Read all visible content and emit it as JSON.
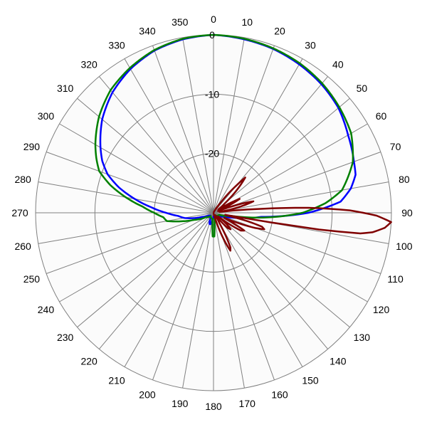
{
  "chart_data": {
    "type": "polar-line",
    "angle_unit": "degrees",
    "angle_zero": "top",
    "angle_direction": "clockwise",
    "angle_ticks": [
      "0",
      "10",
      "20",
      "30",
      "40",
      "50",
      "60",
      "70",
      "80",
      "90",
      "100",
      "110",
      "120",
      "130",
      "140",
      "150",
      "160",
      "170",
      "180",
      "190",
      "200",
      "210",
      "220",
      "230",
      "240",
      "250",
      "260",
      "270",
      "280",
      "290",
      "300",
      "310",
      "320",
      "330",
      "340",
      "350"
    ],
    "radial_ticks": [
      "0",
      "-10",
      "-20"
    ],
    "radial_range": [
      -30,
      0
    ],
    "grid": true,
    "legend": "none",
    "series": [
      {
        "color": "#0000ff",
        "points": [
          [
            0,
            0
          ],
          [
            10,
            -0.3
          ],
          [
            20,
            -0.6
          ],
          [
            30,
            -1.1
          ],
          [
            40,
            -1.7
          ],
          [
            50,
            -2.5
          ],
          [
            60,
            -3.8
          ],
          [
            70,
            -4.8
          ],
          [
            75,
            -5.2
          ],
          [
            80,
            -6.5
          ],
          [
            85,
            -8.5
          ],
          [
            90,
            -14
          ],
          [
            95,
            -22
          ],
          [
            100,
            -25
          ],
          [
            105,
            -27
          ],
          [
            110,
            -28
          ],
          [
            120,
            -29
          ],
          [
            150,
            -29.2
          ],
          [
            180,
            -29.4
          ],
          [
            190,
            -28.8
          ],
          [
            195,
            -28
          ],
          [
            200,
            -28
          ],
          [
            210,
            -29
          ],
          [
            230,
            -29.3
          ],
          [
            240,
            -29
          ],
          [
            250,
            -28
          ],
          [
            255,
            -26.5
          ],
          [
            260,
            -25
          ],
          [
            265,
            -24
          ],
          [
            270,
            -22
          ],
          [
            275,
            -19.5
          ],
          [
            280,
            -16.5
          ],
          [
            285,
            -13.5
          ],
          [
            290,
            -11
          ],
          [
            295,
            -9.3
          ],
          [
            300,
            -8
          ],
          [
            310,
            -5.5
          ],
          [
            320,
            -3.5
          ],
          [
            330,
            -2
          ],
          [
            340,
            -0.9
          ],
          [
            350,
            -0.3
          ],
          [
            360,
            0
          ]
        ]
      },
      {
        "color": "#008000",
        "points": [
          [
            0,
            0
          ],
          [
            10,
            -0.2
          ],
          [
            20,
            -0.5
          ],
          [
            30,
            -0.9
          ],
          [
            40,
            -1.5
          ],
          [
            50,
            -2.3
          ],
          [
            60,
            -3.2
          ],
          [
            70,
            -5
          ],
          [
            75,
            -6.5
          ],
          [
            80,
            -8
          ],
          [
            85,
            -11
          ],
          [
            90,
            -15
          ],
          [
            95,
            -21
          ],
          [
            100,
            -27
          ],
          [
            110,
            -29
          ],
          [
            150,
            -29.5
          ],
          [
            170,
            -29
          ],
          [
            175,
            -28
          ],
          [
            178,
            -26
          ],
          [
            180,
            -26
          ],
          [
            182,
            -26
          ],
          [
            185,
            -28
          ],
          [
            190,
            -29
          ],
          [
            200,
            -29
          ],
          [
            220,
            -29.3
          ],
          [
            240,
            -28.5
          ],
          [
            250,
            -26.5
          ],
          [
            255,
            -24.5
          ],
          [
            260,
            -22
          ],
          [
            265,
            -21.5
          ],
          [
            270,
            -20
          ],
          [
            275,
            -18
          ],
          [
            280,
            -15
          ],
          [
            285,
            -12
          ],
          [
            290,
            -9.5
          ],
          [
            295,
            -8.2
          ],
          [
            300,
            -7
          ],
          [
            310,
            -4.8
          ],
          [
            320,
            -3
          ],
          [
            330,
            -1.8
          ],
          [
            340,
            -0.8
          ],
          [
            350,
            -0.2
          ],
          [
            360,
            0
          ]
        ]
      },
      {
        "color": "#800000",
        "points": [
          [
            0,
            -30
          ],
          [
            20,
            -30
          ],
          [
            30,
            -29.5
          ],
          [
            35,
            -28
          ],
          [
            40,
            -24
          ],
          [
            42,
            -22
          ],
          [
            45,
            -24
          ],
          [
            50,
            -27.5
          ],
          [
            55,
            -29
          ],
          [
            58,
            -28
          ],
          [
            60,
            -26.5
          ],
          [
            62,
            -25
          ],
          [
            64,
            -26.5
          ],
          [
            66,
            -28.5
          ],
          [
            68,
            -29.2
          ],
          [
            70,
            -28
          ],
          [
            72,
            -25
          ],
          [
            74,
            -23
          ],
          [
            76,
            -24.5
          ],
          [
            79,
            -27
          ],
          [
            81,
            -29
          ],
          [
            83,
            -28
          ],
          [
            85,
            -23
          ],
          [
            87,
            -14
          ],
          [
            89,
            -7
          ],
          [
            91,
            -2.5
          ],
          [
            93,
            0
          ],
          [
            95,
            -1
          ],
          [
            97,
            -3
          ],
          [
            98,
            -5
          ],
          [
            99,
            -12
          ],
          [
            100,
            -28
          ],
          [
            102,
            -27
          ],
          [
            104,
            -24
          ],
          [
            106,
            -21.5
          ],
          [
            108,
            -21
          ],
          [
            110,
            -22.5
          ],
          [
            113,
            -26
          ],
          [
            115,
            -28
          ],
          [
            118,
            -26
          ],
          [
            120,
            -24
          ],
          [
            123,
            -24.5
          ],
          [
            126,
            -27
          ],
          [
            128,
            -29
          ],
          [
            131,
            -27
          ],
          [
            134,
            -26
          ],
          [
            137,
            -26.5
          ],
          [
            140,
            -28.5
          ],
          [
            143,
            -29.5
          ],
          [
            147,
            -29
          ],
          [
            150,
            -28
          ],
          [
            152,
            -25.5
          ],
          [
            154,
            -23.5
          ],
          [
            156,
            -23
          ],
          [
            158,
            -24.5
          ],
          [
            161,
            -27
          ],
          [
            164,
            -29.2
          ],
          [
            170,
            -30
          ],
          [
            360,
            -30
          ]
        ]
      }
    ]
  }
}
